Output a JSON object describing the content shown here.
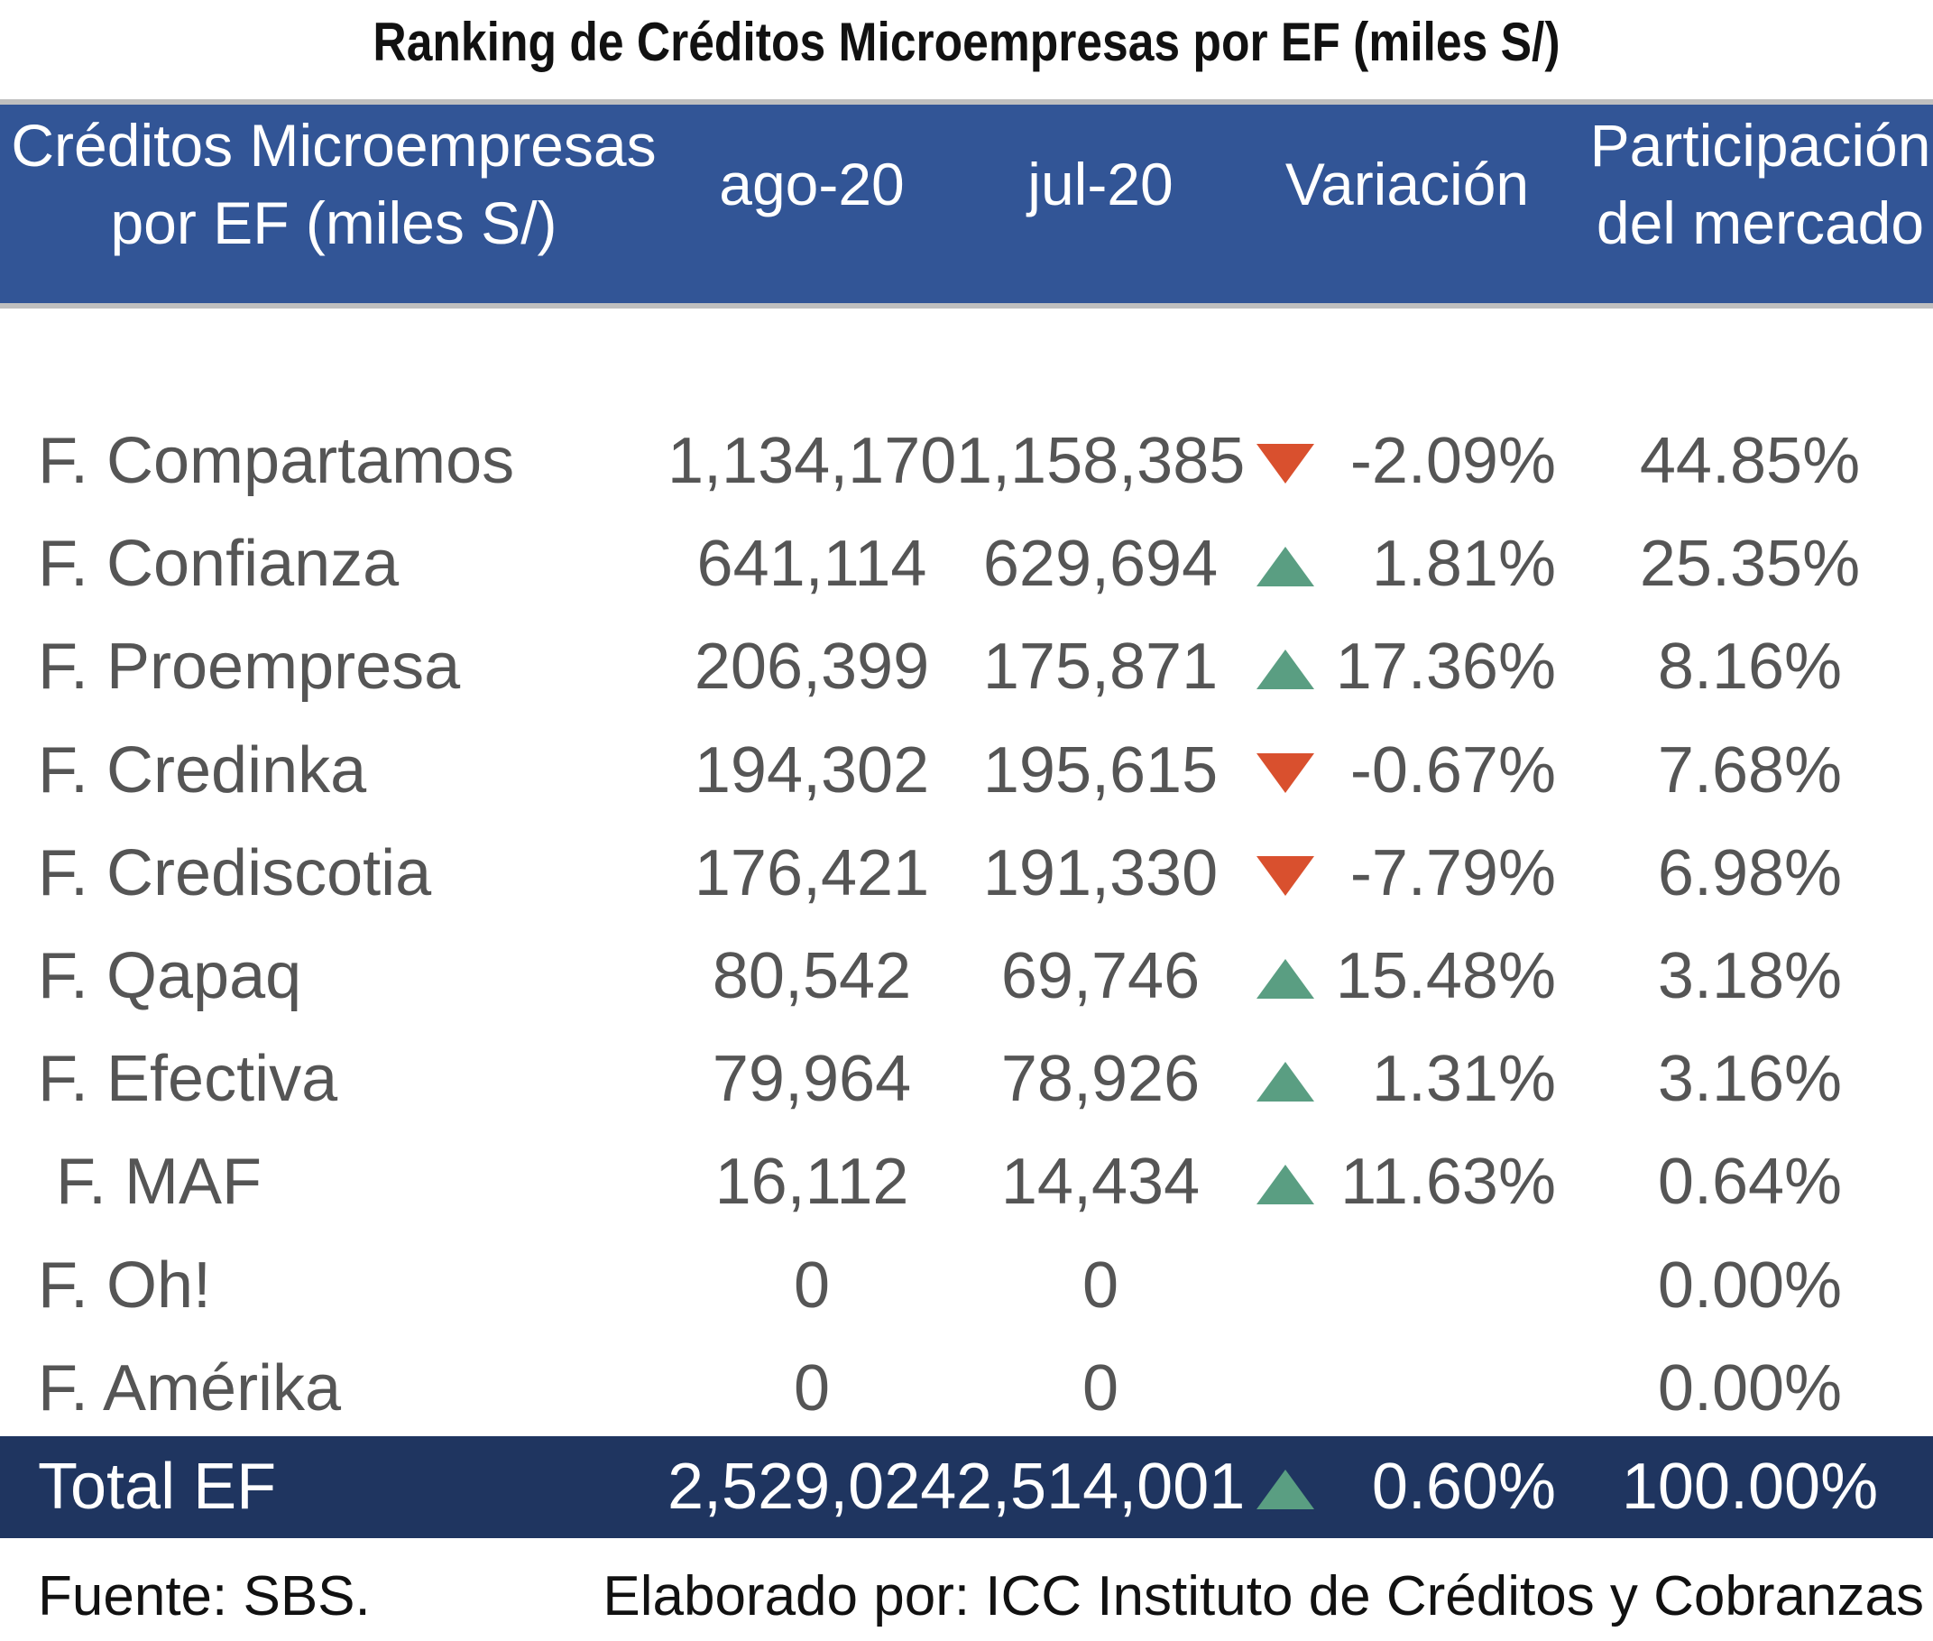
{
  "title": "Ranking de Créditos Microempresas por EF (miles S/)",
  "header": {
    "col1_line1": "Créditos Microempresas",
    "col1_line2": "por EF (miles S/)",
    "col2": "ago-20",
    "col3": "jul-20",
    "col4": "Variación",
    "col5_line1": "Participación",
    "col5_line2": "del mercado"
  },
  "colors": {
    "header_bg": "#325596",
    "total_bg": "#1f3560",
    "up": "#5a9e82",
    "down": "#d9502e"
  },
  "chart_data": {
    "type": "table",
    "title": "Ranking de Créditos Microempresas por EF (miles S/)",
    "columns": [
      "Créditos Microempresas por EF (miles S/)",
      "ago-20",
      "jul-20",
      "Variación",
      "Participación del mercado"
    ],
    "rows": [
      {
        "name": "F. Compartamos",
        "ago": "1,134,170",
        "jul": "1,158,385",
        "dir": "down",
        "var": "-2.09%",
        "part": "44.85%"
      },
      {
        "name": "F. Confianza",
        "ago": "641,114",
        "jul": "629,694",
        "dir": "up",
        "var": "1.81%",
        "part": "25.35%"
      },
      {
        "name": "F. Proempresa",
        "ago": "206,399",
        "jul": "175,871",
        "dir": "up",
        "var": "17.36%",
        "part": "8.16%"
      },
      {
        "name": "F. Credinka",
        "ago": "194,302",
        "jul": "195,615",
        "dir": "down",
        "var": "-0.67%",
        "part": "7.68%"
      },
      {
        "name": "F. Crediscotia",
        "ago": "176,421",
        "jul": "191,330",
        "dir": "down",
        "var": "-7.79%",
        "part": "6.98%"
      },
      {
        "name": "F. Qapaq",
        "ago": "80,542",
        "jul": "69,746",
        "dir": "up",
        "var": "15.48%",
        "part": "3.18%"
      },
      {
        "name": "F. Efectiva",
        "ago": "79,964",
        "jul": "78,926",
        "dir": "up",
        "var": "1.31%",
        "part": "3.16%"
      },
      {
        "name": " F. MAF",
        "ago": "16,112",
        "jul": "14,434",
        "dir": "up",
        "var": "11.63%",
        "part": "0.64%"
      },
      {
        "name": "F. Oh!",
        "ago": "0",
        "jul": "0",
        "dir": "",
        "var": "",
        "part": "0.00%"
      },
      {
        "name": "F. Amérika",
        "ago": "0",
        "jul": "0",
        "dir": "",
        "var": "",
        "part": "0.00%"
      }
    ],
    "total": {
      "name": "Total EF",
      "ago": "2,529,024",
      "jul": "2,514,001",
      "dir": "up",
      "var": "0.60%",
      "part": "100.00%"
    }
  },
  "footer": {
    "source": "Fuente: SBS.",
    "credit": "Elaborado por: ICC Instituto de Créditos y Cobranzas"
  }
}
